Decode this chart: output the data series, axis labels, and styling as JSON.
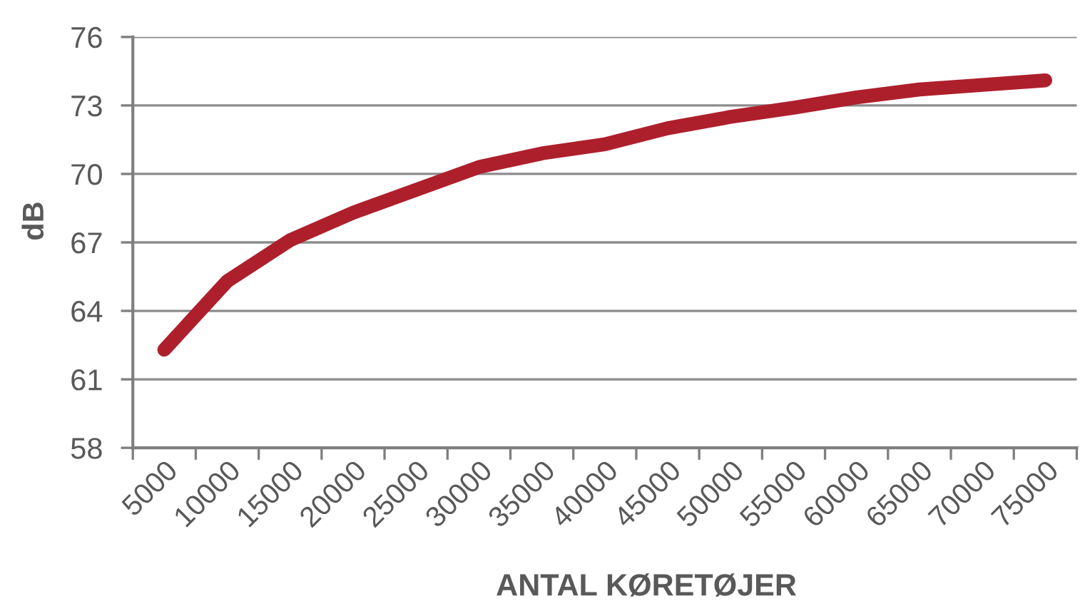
{
  "chart_data": {
    "type": "line",
    "xlabel": "ANTAL KØRETØJER",
    "ylabel": "dB",
    "categories": [
      "5000",
      "10000",
      "15000",
      "20000",
      "25000",
      "30000",
      "35000",
      "40000",
      "45000",
      "50000",
      "55000",
      "60000",
      "65000",
      "70000",
      "75000"
    ],
    "series": [
      {
        "color": "#ae1f2c",
        "values": [
          62.3,
          65.3,
          67.1,
          68.3,
          69.3,
          70.3,
          70.9,
          71.3,
          72.0,
          72.5,
          72.9,
          73.35,
          73.7,
          73.9,
          74.1
        ]
      }
    ],
    "ylim": [
      58,
      76
    ],
    "yticks": [
      58,
      61,
      64,
      67,
      70,
      73,
      76
    ],
    "grid": "y",
    "line_style": "solid"
  }
}
